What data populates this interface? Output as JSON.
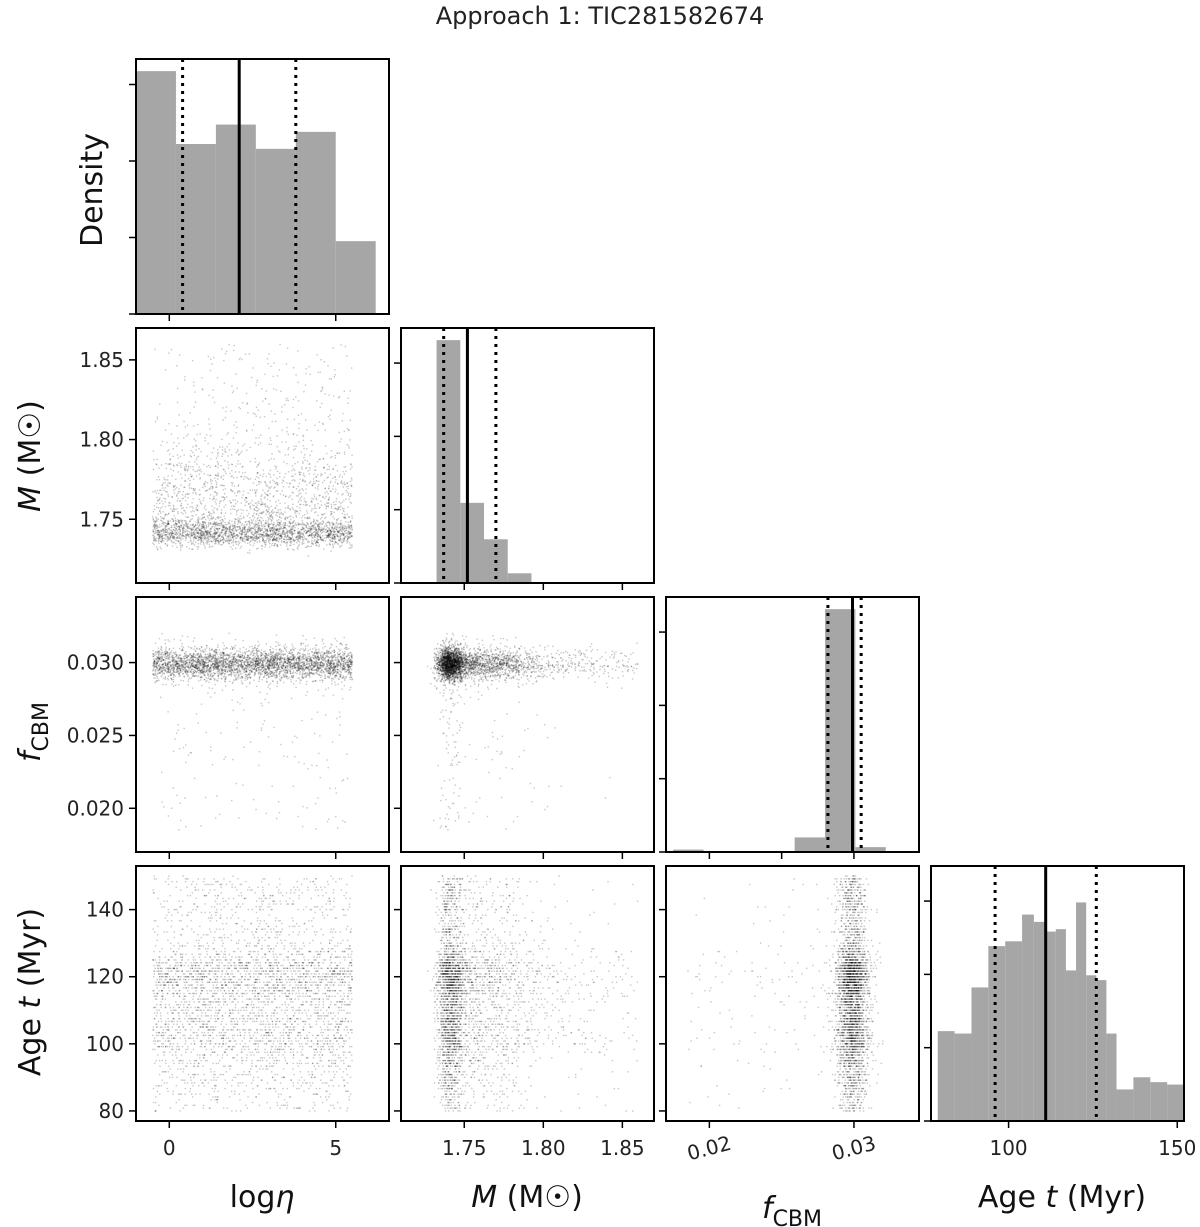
{
  "figure": {
    "title": "Approach 1: TIC281582674"
  },
  "colors": {
    "hist": "#a6a6a6",
    "point": "#000000",
    "frame": "#000000",
    "median": "#000000"
  },
  "chart_data": {
    "type": "corner",
    "title": "Approach 1: TIC281582674",
    "density_label": "Density",
    "parameters": [
      {
        "key": "logeta",
        "label_main": "log",
        "label_sym": "η",
        "label_sub": "",
        "label_unit": "",
        "range": [
          -1,
          6.6
        ],
        "ticks": [
          0,
          5
        ],
        "tick_labels": [
          "0",
          "5"
        ],
        "tick_rotation": 0,
        "median": 2.1,
        "q16": 0.4,
        "q84": 3.8
      },
      {
        "key": "M",
        "label_main": "",
        "label_sym": "M",
        "label_sub": "",
        "label_unit": " (M☉)",
        "range": [
          1.71,
          1.87
        ],
        "ticks": [
          1.75,
          1.8,
          1.85
        ],
        "tick_labels": [
          "1.75",
          "1.80",
          "1.85"
        ],
        "tick_rotation": 0,
        "median": 1.752,
        "q16": 1.737,
        "q84": 1.77
      },
      {
        "key": "fCBM",
        "label_main": "",
        "label_sym": "f",
        "label_sub": "CBM",
        "label_unit": "",
        "range": [
          0.017,
          0.0345
        ],
        "ticks": [
          0.02,
          0.025,
          0.03
        ],
        "tick_labels": [
          "0.020",
          "0.025",
          "0.030"
        ],
        "tick_rotation": 0,
        "median": 0.0299,
        "q16": 0.0282,
        "q84": 0.0305
      },
      {
        "key": "age",
        "label_main": "Age ",
        "label_sym": "t",
        "label_sub": "",
        "label_unit": " (Myr)",
        "range": [
          77,
          153
        ],
        "ticks": [
          80,
          100,
          120,
          140
        ],
        "tick_labels": [
          "80",
          "100",
          "120",
          "140"
        ],
        "tick_rotation": 0,
        "median": 111,
        "q16": 96,
        "q84": 126
      }
    ],
    "bottom_ticks": [
      {
        "ticks": [
          0,
          5
        ],
        "tick_labels": [
          "0",
          "5"
        ],
        "rotation": 0
      },
      {
        "ticks": [
          1.75,
          1.8,
          1.85
        ],
        "tick_labels": [
          "1.75",
          "1.80",
          "1.85"
        ],
        "rotation": 0
      },
      {
        "ticks": [
          0.02,
          0.03
        ],
        "tick_labels": [
          "0.02",
          "0.03"
        ],
        "rotation": -15
      },
      {
        "ticks": [
          100,
          150
        ],
        "tick_labels": [
          "100",
          "150"
        ],
        "rotation": 0
      }
    ],
    "age_hist_range": [
      77,
      152
    ],
    "histograms": [
      {
        "param": "logeta",
        "edges": [
          -1.0,
          0.2,
          1.4,
          2.6,
          3.8,
          5.0,
          6.2
        ],
        "values": [
          1.0,
          0.7,
          0.78,
          0.68,
          0.75,
          0.3
        ],
        "ymax": 1.05
      },
      {
        "param": "M",
        "edges": [
          1.7325,
          1.7475,
          1.7625,
          1.7775,
          1.7925,
          1.8075
        ],
        "values": [
          1.0,
          0.33,
          0.18,
          0.04,
          0.0
        ],
        "ymax": 1.05
      },
      {
        "param": "fCBM",
        "edges": [
          0.0175,
          0.0196,
          0.0217,
          0.0238,
          0.0259,
          0.028,
          0.0301,
          0.0322
        ],
        "values": [
          0.01,
          0.0,
          0.0,
          0.0,
          0.06,
          1.0,
          0.02
        ],
        "ymax": 1.05
      },
      {
        "param": "age",
        "edges": [
          79,
          84,
          89,
          94,
          99,
          104,
          107.5,
          111,
          114,
          117,
          120,
          123,
          126,
          129,
          132,
          137,
          142,
          147,
          152
        ],
        "values": [
          0.37,
          0.36,
          0.55,
          0.72,
          0.74,
          0.85,
          0.82,
          0.78,
          0.79,
          0.62,
          0.9,
          0.6,
          0.58,
          0.36,
          0.13,
          0.18,
          0.16,
          0.15
        ],
        "ymax": 1.05
      }
    ],
    "samples": 3500
  }
}
